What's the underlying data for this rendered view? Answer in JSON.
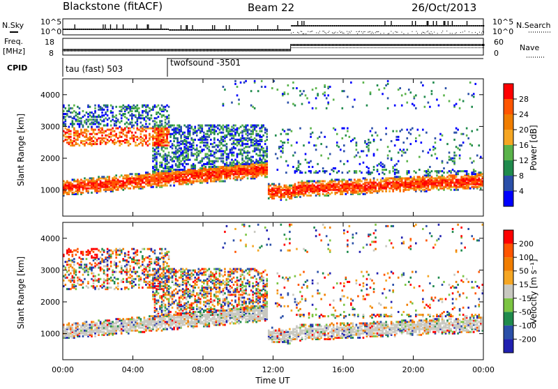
{
  "header": {
    "radar": "Blackstone (fitACF)",
    "beam": "Beam 22",
    "date": "26/Oct/2013"
  },
  "status_panel": {
    "nsky_label": "N.Sky",
    "nsearch_label": "N.Search",
    "noise_ticks": [
      "10^5",
      "10^0"
    ],
    "freq_label_1": "Freq.",
    "freq_label_2": "[MHz]",
    "freq_ticks": [
      "18",
      "8"
    ],
    "nave_label": "Nave",
    "nave_ticks": [
      "60",
      "0"
    ],
    "cpid_label": "CPID",
    "cpid_1": "tau (fast) 503",
    "cpid_2": "twofsound -3501"
  },
  "colors": {
    "power": [
      "#0000ff",
      "#2a4fa8",
      "#1f8a4c",
      "#5ab34a",
      "#f5a623",
      "#f07d00",
      "#ff5500",
      "#ff0000"
    ],
    "velocity": [
      "#2020b0",
      "#2a4fa8",
      "#1f8a4c",
      "#7bc442",
      "#c8c8c0",
      "#f5a623",
      "#f07d00",
      "#ff5500",
      "#ff0000"
    ]
  },
  "chart_data": [
    {
      "type": "heatmap",
      "title": "Power",
      "xlabel": "",
      "ylabel": "Slant Range [km]",
      "colorbar_label": "Power [dB]",
      "colorbar_ticks": [
        "28",
        "24",
        "20",
        "16",
        "12",
        "8",
        "4"
      ],
      "yticks": [
        "4000",
        "3000",
        "2000",
        "1000"
      ],
      "ylim": [
        180,
        4500
      ],
      "xlim_hours": [
        0,
        24
      ],
      "echo_bands": [
        {
          "t0": 0.0,
          "t1": 11.6,
          "r0": 1000,
          "r1": 1600,
          "note": "rising band"
        },
        {
          "t0": 11.6,
          "t1": 13.0,
          "r0": 800,
          "r1": 1400
        },
        {
          "t0": 13.0,
          "t1": 24.0,
          "r0": 850,
          "r1": 1500
        }
      ]
    },
    {
      "type": "heatmap",
      "title": "Velocity",
      "xlabel": "Time UT",
      "ylabel": "Slant Range [km]",
      "colorbar_label": "Velocity [m s⁻¹]",
      "colorbar_ticks": [
        "200",
        "100",
        "50",
        "15",
        "-15",
        "-50",
        "-100",
        "-200"
      ],
      "yticks": [
        "4000",
        "3000",
        "2000",
        "1000"
      ],
      "xticks": [
        "00:00",
        "04:00",
        "08:00",
        "12:00",
        "16:00",
        "20:00",
        "00:00"
      ],
      "xtick_hours": [
        0,
        4,
        8,
        12,
        16,
        20,
        24
      ],
      "ylim": [
        180,
        4500
      ],
      "xlim_hours": [
        0,
        24
      ]
    }
  ]
}
